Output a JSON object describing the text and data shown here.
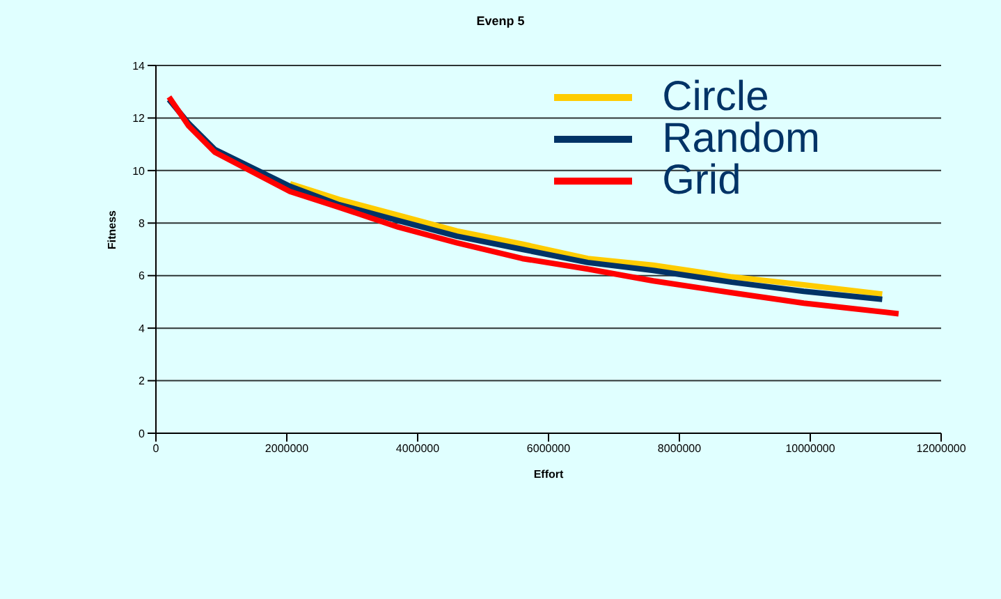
{
  "chart_data": {
    "type": "line",
    "title": "Evenp 5",
    "xlabel": "Effort",
    "ylabel": "Fitness",
    "xlim": [
      0,
      12000000
    ],
    "xticks": [
      0,
      2000000,
      4000000,
      6000000,
      8000000,
      10000000,
      12000000
    ],
    "ylim": [
      0,
      14
    ],
    "yticks": [
      0,
      2,
      4,
      6,
      8,
      10,
      12,
      14
    ],
    "grid": "y",
    "legend": "top right",
    "marker": "none",
    "line_style": "solid",
    "series": [
      {
        "name": "Circle",
        "color": "#ffcc00",
        "x": [
          2050000,
          2800000,
          3700000,
          4600000,
          5600000,
          6600000,
          7600000,
          8800000,
          9900000,
          11100000
        ],
        "values": [
          9.5,
          8.9,
          8.3,
          7.7,
          7.2,
          6.65,
          6.4,
          5.95,
          5.65,
          5.3
        ]
      },
      {
        "name": "Random",
        "color": "#003366",
        "x": [
          200000,
          500000,
          900000,
          2050000,
          2800000,
          3700000,
          4600000,
          5600000,
          6600000,
          7600000,
          8800000,
          9900000,
          11100000
        ],
        "values": [
          12.7,
          11.8,
          10.8,
          9.4,
          8.7,
          8.1,
          7.5,
          7.0,
          6.5,
          6.2,
          5.75,
          5.4,
          5.1
        ]
      },
      {
        "name": "Grid",
        "color": "#ff0000",
        "x": [
          200000,
          500000,
          900000,
          2050000,
          2800000,
          3700000,
          4600000,
          5600000,
          6600000,
          7600000,
          8800000,
          9900000,
          11350000
        ],
        "values": [
          12.8,
          11.7,
          10.7,
          9.2,
          8.6,
          7.85,
          7.25,
          6.65,
          6.25,
          5.8,
          5.35,
          4.95,
          4.55
        ]
      }
    ]
  }
}
